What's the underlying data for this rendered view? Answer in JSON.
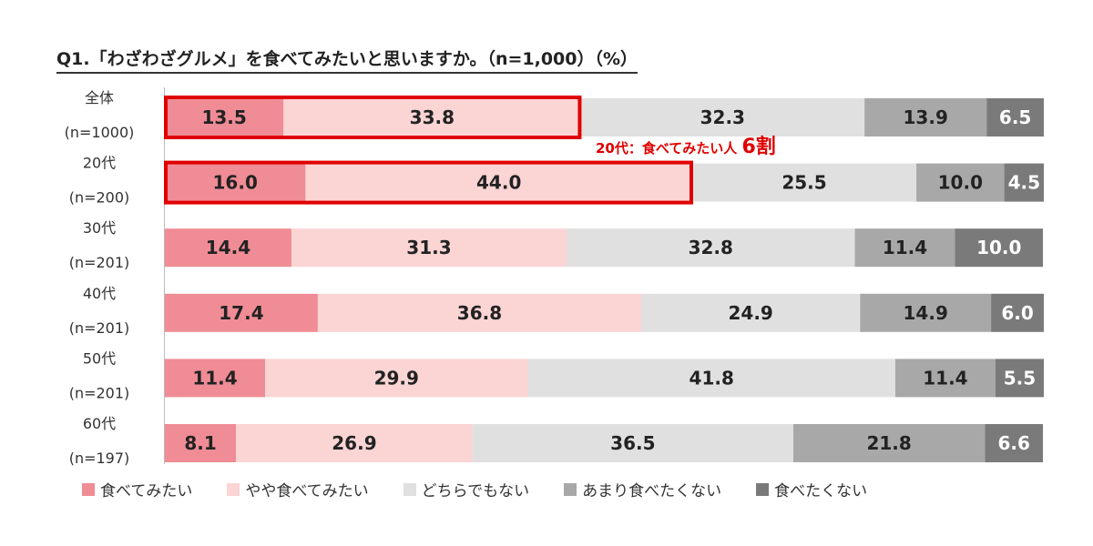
{
  "title": "Q1.「わざわざグルメ」を食べてみたいと思いますか。（n=1,000）（%）",
  "annotation": {
    "prefix": "20代：食べてみたい人",
    "emphasis": "6割",
    "color": "#e00000"
  },
  "legend_names": [
    "食べてみたい",
    "やや食べてみたい",
    "どちらでもない",
    "あまり食べたくない",
    "食べたくない"
  ],
  "colors": [
    "#ef8c95",
    "#fbd4d4",
    "#e0e0e0",
    "#a8a8a8",
    "#7a7a7a"
  ],
  "chart_data": {
    "type": "bar",
    "orientation": "horizontal",
    "stacked": true,
    "unit": "%",
    "title": "Q1.「わざわざグルメ」を食べてみたいと思いますか。（n=1,000）（%）",
    "categories": [
      "全体",
      "20代",
      "30代",
      "40代",
      "50代",
      "60代"
    ],
    "category_n": [
      "(n=1000)",
      "(n=200)",
      "(n=201)",
      "(n=201)",
      "(n=201)",
      "(n=197)"
    ],
    "series": [
      {
        "name": "食べてみたい",
        "values": [
          13.5,
          16.0,
          14.4,
          17.4,
          11.4,
          8.1
        ]
      },
      {
        "name": "やや食べてみたい",
        "values": [
          33.8,
          44.0,
          31.3,
          36.8,
          29.9,
          26.9
        ]
      },
      {
        "name": "どちらでもない",
        "values": [
          32.3,
          25.5,
          32.8,
          24.9,
          41.8,
          36.5
        ]
      },
      {
        "name": "あまり食べたくない",
        "values": [
          13.9,
          10.0,
          11.4,
          14.9,
          11.4,
          21.8
        ]
      },
      {
        "name": "食べたくない",
        "values": [
          6.5,
          4.5,
          10.0,
          6.0,
          5.5,
          6.6
        ]
      }
    ],
    "highlighted_categories": [
      "全体",
      "20代"
    ],
    "highlighted_series": [
      "食べてみたい",
      "やや食べてみたい"
    ],
    "legend_position": "bottom",
    "xlim": [
      0,
      100
    ],
    "grid": false
  }
}
